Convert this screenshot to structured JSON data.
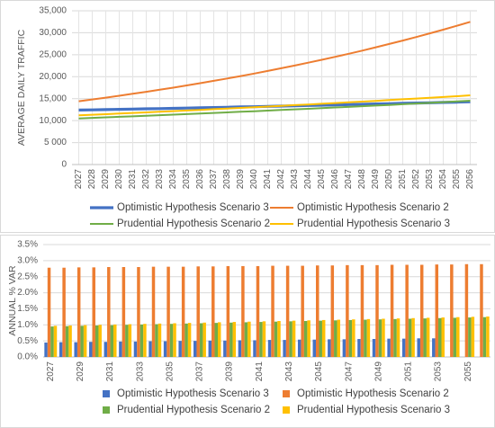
{
  "chart_data": [
    {
      "type": "line",
      "y_label": "AVERAGE DAILY TRAFFIC",
      "categories": [
        "2027",
        "2028",
        "2029",
        "2030",
        "2031",
        "2032",
        "2033",
        "2034",
        "2035",
        "2036",
        "2037",
        "2038",
        "2039",
        "2040",
        "2041",
        "2042",
        "2043",
        "2044",
        "2045",
        "2046",
        "2047",
        "2048",
        "2049",
        "2050",
        "2051",
        "2052",
        "2053",
        "2054",
        "2055",
        "2056"
      ],
      "ylim": [
        0,
        35000
      ],
      "yticks": [
        0,
        {
          "value": 5000,
          "label": "5 000"
        },
        {
          "value": 10000,
          "label": "10,000"
        },
        {
          "value": 15000,
          "label": "15,000"
        },
        {
          "value": 20000,
          "label": "20,000"
        },
        {
          "value": 25000,
          "label": "25,000"
        },
        {
          "value": 30000,
          "label": "30,000"
        },
        {
          "value": 35000,
          "label": "35,000"
        }
      ],
      "grid": true,
      "legend": "bottom",
      "series": [
        {
          "name": "Optimistic Hypothesis Scenario 3",
          "color": "#4472c4",
          "values": [
            12400,
            12450,
            12510,
            12560,
            12620,
            12680,
            12740,
            12800,
            12860,
            12920,
            12980,
            13040,
            13110,
            13170,
            13240,
            13300,
            13370,
            13440,
            13510,
            13580,
            13650,
            13720,
            13790,
            13860,
            13930,
            14000,
            14070,
            14140,
            14210,
            14290
          ]
        },
        {
          "name": "Optimistic Hypothesis Scenario 2",
          "color": "#ed7d31",
          "values": [
            14400,
            14810,
            15230,
            15660,
            16100,
            16560,
            17030,
            17510,
            18010,
            18520,
            19050,
            19590,
            20150,
            20720,
            21310,
            21920,
            22540,
            23180,
            23840,
            24520,
            25220,
            25940,
            26680,
            27440,
            28220,
            29030,
            29860,
            30710,
            31590,
            32490
          ]
        },
        {
          "name": "Prudential Hypothesis Scenario 2",
          "color": "#70ad47",
          "values": [
            10500,
            10620,
            10740,
            10860,
            10980,
            11100,
            11230,
            11350,
            11480,
            11610,
            11740,
            11870,
            12010,
            12140,
            12280,
            12420,
            12560,
            12700,
            12840,
            12990,
            13130,
            13280,
            13430,
            13580,
            13740,
            13890,
            14050,
            14210,
            14370,
            14530
          ]
        },
        {
          "name": "Prudential Hypothesis Scenario 3",
          "color": "#ffc000",
          "values": [
            11200,
            11330,
            11470,
            11600,
            11740,
            11880,
            12020,
            12160,
            12300,
            12450,
            12600,
            12750,
            12900,
            13050,
            13200,
            13360,
            13520,
            13680,
            13840,
            14000,
            14170,
            14330,
            14500,
            14680,
            14850,
            15030,
            15200,
            15380,
            15560,
            15750
          ]
        }
      ]
    },
    {
      "type": "bar",
      "y_label": "ANNUAL % VAR",
      "categories": [
        "2027",
        null,
        "2029",
        null,
        "2031",
        null,
        "2033",
        null,
        "2035",
        null,
        "2037",
        null,
        "2039",
        null,
        "2041",
        null,
        "2043",
        null,
        "2045",
        null,
        "2047",
        null,
        "2049",
        null,
        "2051",
        null,
        "2053",
        null,
        "2055",
        null
      ],
      "ylim": [
        0,
        3.5
      ],
      "yticks": [
        {
          "value": 0,
          "label": "0.0%"
        },
        {
          "value": 0.5,
          "label": "0.5%"
        },
        {
          "value": 1,
          "label": "1.0%"
        },
        {
          "value": 1.5,
          "label": "1.5%"
        },
        {
          "value": 2,
          "label": "2.0%"
        },
        {
          "value": 2.5,
          "label": "2.5%"
        },
        {
          "value": 3,
          "label": "3.0%"
        },
        {
          "value": 3.5,
          "label": "3.5%"
        }
      ],
      "grid": true,
      "legend": "bottom",
      "series": [
        {
          "name": "Optimistic Hypothesis Scenario 3",
          "color": "#4472c4",
          "values": [
            0.45,
            0.46,
            0.46,
            0.47,
            0.47,
            0.48,
            0.48,
            0.49,
            0.49,
            0.5,
            0.5,
            0.51,
            0.51,
            0.52,
            0.52,
            0.53,
            0.53,
            0.54,
            0.54,
            0.55,
            0.55,
            0.56,
            0.56,
            0.57,
            0.57,
            0.58,
            0.58,
            null,
            null,
            null
          ]
        },
        {
          "name": "Optimistic Hypothesis Scenario 2",
          "color": "#ed7d31",
          "values": [
            2.78,
            2.78,
            2.79,
            2.79,
            2.8,
            2.8,
            2.8,
            2.81,
            2.81,
            2.81,
            2.82,
            2.82,
            2.83,
            2.83,
            2.83,
            2.84,
            2.84,
            2.84,
            2.85,
            2.85,
            2.86,
            2.86,
            2.86,
            2.87,
            2.87,
            2.87,
            2.88,
            2.88,
            2.89,
            2.89
          ]
        },
        {
          "name": "Prudential Hypothesis Scenario 2",
          "color": "#70ad47",
          "values": [
            0.95,
            0.96,
            0.97,
            0.98,
            0.99,
            1.0,
            1.01,
            1.02,
            1.03,
            1.04,
            1.05,
            1.06,
            1.07,
            1.08,
            1.09,
            1.1,
            1.11,
            1.12,
            1.13,
            1.14,
            1.15,
            1.16,
            1.17,
            1.18,
            1.19,
            1.2,
            1.21,
            1.22,
            1.23,
            1.24
          ]
        },
        {
          "name": "Prudential Hypothesis Scenario 3",
          "color": "#ffc000",
          "values": [
            0.97,
            0.98,
            0.99,
            1.0,
            1.01,
            1.02,
            1.03,
            1.04,
            1.05,
            1.06,
            1.07,
            1.08,
            1.09,
            1.1,
            1.11,
            1.12,
            1.13,
            1.14,
            1.15,
            1.16,
            1.17,
            1.18,
            1.19,
            1.2,
            1.21,
            1.22,
            1.23,
            1.24,
            1.25,
            1.26
          ]
        }
      ]
    }
  ]
}
